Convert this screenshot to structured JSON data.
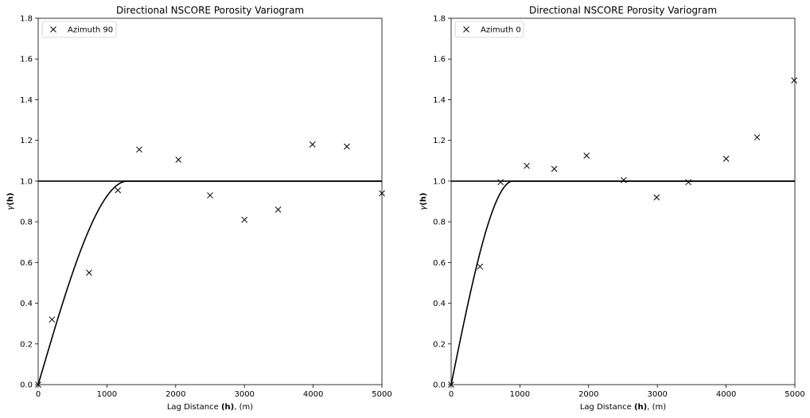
{
  "chart_data": [
    {
      "type": "scatter",
      "title": "Directional NSCORE Porosity Variogram",
      "xlabel_prefix": "Lag Distance ",
      "xlabel_bold": "(h)",
      "xlabel_suffix": ", (m)",
      "ylabel_gamma": "γ",
      "ylabel_bold": "(h)",
      "xlim": [
        0,
        5000
      ],
      "ylim": [
        0,
        1.8
      ],
      "xticks": [
        0,
        1000,
        2000,
        3000,
        4000,
        5000
      ],
      "yticks": [
        0.0,
        0.2,
        0.4,
        0.6,
        0.8,
        1.0,
        1.2,
        1.4,
        1.6,
        1.8
      ],
      "legend_position": "top-left",
      "sill": 1.0,
      "series": [
        {
          "name": "Azimuth 90",
          "marker": "x",
          "x": [
            0,
            200,
            740,
            1160,
            1470,
            2040,
            2500,
            3000,
            3490,
            3990,
            4490,
            5000
          ],
          "y": [
            0.0,
            0.32,
            0.55,
            0.955,
            1.155,
            1.105,
            0.93,
            0.81,
            0.86,
            1.18,
            1.17,
            0.94
          ]
        }
      ],
      "model": {
        "type": "spherical",
        "range": 1300,
        "sill": 1.0
      }
    },
    {
      "type": "scatter",
      "title": "Directional NSCORE Porosity Variogram",
      "xlabel_prefix": "Lag Distance ",
      "xlabel_bold": "(h)",
      "xlabel_suffix": ", (m)",
      "ylabel_gamma": "γ",
      "ylabel_bold": "(h)",
      "xlim": [
        0,
        5000
      ],
      "ylim": [
        0,
        1.8
      ],
      "xticks": [
        0,
        1000,
        2000,
        3000,
        4000,
        5000
      ],
      "yticks": [
        0.0,
        0.2,
        0.4,
        0.6,
        0.8,
        1.0,
        1.2,
        1.4,
        1.6,
        1.8
      ],
      "legend_position": "top-left",
      "sill": 1.0,
      "series": [
        {
          "name": "Azimuth 0",
          "marker": "x",
          "x": [
            0,
            420,
            720,
            1100,
            1500,
            1970,
            2510,
            2990,
            3450,
            4000,
            4450,
            4990
          ],
          "y": [
            0.0,
            0.58,
            0.995,
            1.075,
            1.06,
            1.125,
            1.005,
            0.92,
            0.995,
            1.11,
            1.215,
            1.495
          ]
        }
      ],
      "model": {
        "type": "spherical",
        "range": 900,
        "sill": 1.0
      }
    }
  ]
}
